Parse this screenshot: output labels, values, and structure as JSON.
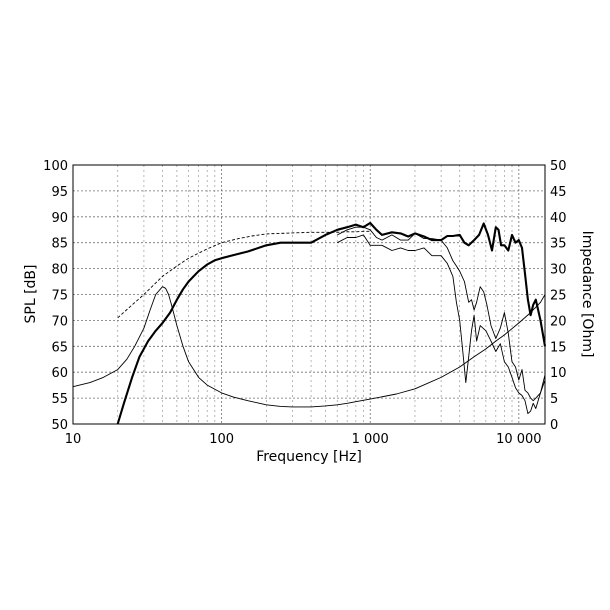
{
  "chart_data": {
    "type": "line",
    "xlabel": "Frequency [Hz]",
    "ylabel_left": "SPL [dB]",
    "ylabel_right": "Impedance [Ohm]",
    "x_scale": "log",
    "xlim": [
      10,
      15000
    ],
    "ylim_left": [
      50,
      100
    ],
    "ylim_right": [
      0,
      50
    ],
    "grid": true,
    "x_ticks": [
      {
        "value": 10,
        "label": "10"
      },
      {
        "value": 100,
        "label": "100"
      },
      {
        "value": 1000,
        "label": "1 000"
      },
      {
        "value": 10000,
        "label": "10 000"
      }
    ],
    "y_ticks_left": [
      50,
      55,
      60,
      65,
      70,
      75,
      80,
      85,
      90,
      95,
      100
    ],
    "y_ticks_right": [
      0,
      5,
      10,
      15,
      20,
      25,
      30,
      35,
      40,
      45,
      50
    ],
    "series": [
      {
        "axis": "left",
        "style": "bold",
        "x": [
          20,
          22,
          25,
          28,
          32,
          36,
          40,
          45,
          50,
          55,
          60,
          70,
          80,
          90,
          100,
          120,
          150,
          200,
          250,
          300,
          400,
          500,
          550,
          600,
          700,
          800,
          900,
          1000,
          1100,
          1200,
          1400,
          1600,
          1800,
          2000,
          2300,
          2600,
          3000,
          3300,
          3600,
          4000,
          4300,
          4600,
          5000,
          5400,
          5800,
          6200,
          6600,
          7000,
          7300,
          7600,
          8000,
          8500,
          9000,
          9500,
          10000,
          10500,
          11000,
          11500,
          12000,
          12500,
          13000,
          14000,
          15000
        ],
        "y": [
          50,
          54,
          59,
          63,
          66,
          68,
          69.5,
          71.5,
          74,
          76,
          77.5,
          79.5,
          80.8,
          81.6,
          82,
          82.6,
          83.3,
          84.5,
          85,
          85,
          85,
          86.5,
          87,
          87.5,
          88,
          88.5,
          88,
          88.8,
          87.5,
          86.5,
          87,
          86.8,
          86.2,
          86.8,
          86.2,
          85.5,
          85.5,
          86.3,
          86.3,
          86.5,
          85,
          84.5,
          85.5,
          86.5,
          88.7,
          86.5,
          83.5,
          88,
          87.5,
          84.5,
          84.5,
          83.5,
          86.5,
          85,
          85.5,
          84,
          79,
          74,
          71,
          73,
          74,
          70,
          65
        ]
      },
      {
        "axis": "left",
        "style": "thin",
        "x": [
          600,
          700,
          800,
          900,
          1000,
          1100,
          1200,
          1400,
          1600,
          1800,
          2000,
          2300,
          2600,
          3000,
          3300,
          3600,
          3800,
          4000,
          4300,
          4600,
          4800,
          5000,
          5200,
          5500,
          5800,
          6100,
          6500,
          7000,
          7500,
          8000,
          8500,
          9000,
          9500,
          10000,
          10500,
          11000,
          11500,
          12000,
          12500,
          13000,
          14000,
          15000
        ],
        "y": [
          86.5,
          87.5,
          88,
          88,
          87.5,
          86,
          85.5,
          86.5,
          85.5,
          85.5,
          86.8,
          85.8,
          85.8,
          85.5,
          84,
          81.5,
          80.5,
          79.5,
          77.5,
          73.5,
          74,
          72,
          73.5,
          76.5,
          75.5,
          73,
          69,
          66.5,
          68.5,
          71.5,
          67.5,
          62,
          61,
          58.5,
          60.5,
          56.5,
          56,
          55,
          54.5,
          55,
          56,
          59.5
        ]
      },
      {
        "axis": "left",
        "style": "thin",
        "x": [
          600,
          700,
          800,
          900,
          1000,
          1200,
          1400,
          1600,
          1800,
          2000,
          2300,
          2600,
          3000,
          3300,
          3600,
          3800,
          4000,
          4200,
          4400,
          4600,
          4800,
          5000,
          5200,
          5500,
          6000,
          6500,
          7000,
          7500,
          8000,
          8500,
          9000,
          9500,
          10000,
          10500,
          11000,
          11500,
          12000,
          12500,
          13000,
          14000,
          15000
        ],
        "y": [
          85,
          86,
          86,
          86.5,
          84.5,
          84.5,
          83.5,
          84,
          83.5,
          83.5,
          84,
          82.5,
          82.5,
          81,
          78.5,
          73.5,
          70,
          64,
          58,
          63,
          68,
          71,
          66,
          69,
          68,
          66,
          64,
          65.5,
          62,
          61,
          59,
          57,
          56,
          55.5,
          54.5,
          52,
          52.5,
          54,
          53,
          56,
          58.5
        ]
      },
      {
        "axis": "left",
        "style": "dashed",
        "x": [
          20,
          25,
          30,
          40,
          50,
          60,
          80,
          100,
          130,
          160,
          200,
          250,
          300,
          400,
          500,
          600,
          700,
          800,
          900,
          1000
        ],
        "y": [
          70.5,
          73,
          75,
          78.5,
          80.5,
          82,
          83.8,
          85,
          85.8,
          86.3,
          86.7,
          86.8,
          86.9,
          87,
          87,
          87,
          87.1,
          87.1,
          87.2,
          87.2
        ]
      },
      {
        "axis": "right",
        "style": "thin",
        "x": [
          10,
          13,
          16,
          20,
          23,
          26,
          30,
          33,
          36,
          40,
          42,
          44,
          46,
          48,
          50,
          55,
          60,
          70,
          80,
          100,
          120,
          150,
          200,
          250,
          300,
          400,
          500,
          600,
          700,
          800,
          1000,
          1500,
          2000,
          3000,
          4000,
          5000,
          6000,
          7000,
          8000,
          10000,
          12000,
          14000,
          15000
        ],
        "y": [
          7.2,
          8,
          9,
          10.5,
          12.5,
          15,
          18.5,
          22,
          25,
          26.5,
          26.2,
          25,
          23,
          21,
          19,
          15,
          12,
          9,
          7.5,
          6,
          5.2,
          4.5,
          3.7,
          3.4,
          3.3,
          3.3,
          3.5,
          3.7,
          4,
          4.3,
          4.8,
          5.8,
          6.8,
          9,
          11,
          13,
          14.5,
          16,
          17.2,
          19.5,
          21.5,
          23.5,
          25
        ]
      }
    ]
  }
}
